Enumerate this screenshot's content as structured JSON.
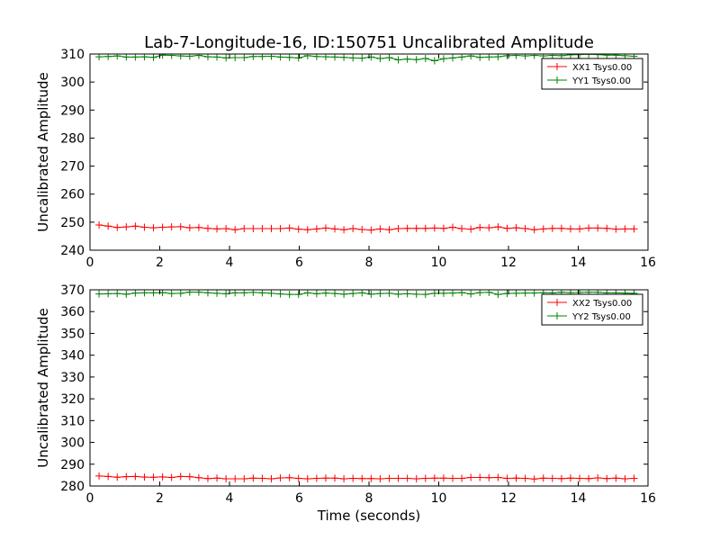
{
  "figure": {
    "title": "Lab-7-Longitude-16, ID:150751 Uncalibrated Amplitude",
    "xlabel": "Time (seconds)"
  },
  "chart_data": [
    {
      "type": "line",
      "title": "Lab-7-Longitude-16, ID:150751 Uncalibrated Amplitude",
      "ylabel": "Uncalibrated Amplitude",
      "xlabel": "",
      "xlim": [
        0,
        16
      ],
      "ylim": [
        240,
        310
      ],
      "xticks": [
        0,
        2,
        4,
        6,
        8,
        10,
        12,
        14,
        16
      ],
      "yticks": [
        240,
        250,
        260,
        270,
        280,
        290,
        300,
        310
      ],
      "grid": false,
      "legend_position": "top-right",
      "x": [
        0.26,
        0.52,
        0.78,
        1.04,
        1.3,
        1.56,
        1.82,
        2.08,
        2.34,
        2.6,
        2.86,
        3.12,
        3.38,
        3.64,
        3.9,
        4.16,
        4.42,
        4.68,
        4.94,
        5.2,
        5.46,
        5.72,
        5.98,
        6.24,
        6.5,
        6.76,
        7.02,
        7.28,
        7.54,
        7.8,
        8.06,
        8.32,
        8.58,
        8.84,
        9.1,
        9.36,
        9.62,
        9.88,
        10.14,
        10.4,
        10.66,
        10.92,
        11.18,
        11.44,
        11.7,
        11.96,
        12.22,
        12.48,
        12.74,
        13.0,
        13.26,
        13.52,
        13.78,
        14.04,
        14.3,
        14.56,
        14.82,
        15.08,
        15.34,
        15.6
      ],
      "series": [
        {
          "name": "XX1 Tsys0.00",
          "color": "#ff0000",
          "values": [
            249.0,
            248.6,
            248.1,
            248.3,
            248.6,
            248.2,
            248.0,
            248.2,
            248.3,
            248.4,
            248.0,
            248.1,
            247.8,
            247.6,
            247.7,
            247.3,
            247.7,
            247.7,
            247.7,
            247.7,
            247.7,
            247.9,
            247.5,
            247.3,
            247.6,
            247.9,
            247.6,
            247.3,
            247.7,
            247.4,
            247.2,
            247.6,
            247.3,
            247.7,
            247.8,
            247.8,
            247.8,
            247.9,
            247.8,
            248.2,
            247.7,
            247.5,
            248.1,
            248.0,
            248.3,
            247.8,
            248.0,
            247.7,
            247.3,
            247.6,
            247.8,
            247.8,
            247.6,
            247.6,
            247.9,
            247.9,
            247.8,
            247.5,
            247.6,
            247.6
          ]
        },
        {
          "name": "YY1 Tsys0.00",
          "color": "#008000",
          "values": [
            309.0,
            309.1,
            309.3,
            308.9,
            308.9,
            309.0,
            308.8,
            309.6,
            309.5,
            309.3,
            309.2,
            309.5,
            309.0,
            308.9,
            308.6,
            308.7,
            308.7,
            309.1,
            309.1,
            309.2,
            308.9,
            308.8,
            308.6,
            309.4,
            309.1,
            309.0,
            308.9,
            308.8,
            308.6,
            308.5,
            308.9,
            308.4,
            308.7,
            307.9,
            308.2,
            308.0,
            308.4,
            307.6,
            308.3,
            308.6,
            308.9,
            309.3,
            308.8,
            308.9,
            309.0,
            309.4,
            309.5,
            309.3,
            309.5,
            309.3,
            309.5,
            309.4,
            309.7,
            309.8,
            309.9,
            309.8,
            309.6,
            309.6,
            309.4,
            309.2
          ]
        }
      ]
    },
    {
      "type": "line",
      "title": "",
      "ylabel": "Uncalibrated Amplitude",
      "xlabel": "Time (seconds)",
      "xlim": [
        0,
        16
      ],
      "ylim": [
        280,
        370
      ],
      "xticks": [
        0,
        2,
        4,
        6,
        8,
        10,
        12,
        14,
        16
      ],
      "yticks": [
        280,
        290,
        300,
        310,
        320,
        330,
        340,
        350,
        360,
        370
      ],
      "grid": false,
      "legend_position": "top-right",
      "x": [
        0.26,
        0.52,
        0.78,
        1.04,
        1.3,
        1.56,
        1.82,
        2.08,
        2.34,
        2.6,
        2.86,
        3.12,
        3.38,
        3.64,
        3.9,
        4.16,
        4.42,
        4.68,
        4.94,
        5.2,
        5.46,
        5.72,
        5.98,
        6.24,
        6.5,
        6.76,
        7.02,
        7.28,
        7.54,
        7.8,
        8.06,
        8.32,
        8.58,
        8.84,
        9.1,
        9.36,
        9.62,
        9.88,
        10.14,
        10.4,
        10.66,
        10.92,
        11.18,
        11.44,
        11.7,
        11.96,
        12.22,
        12.48,
        12.74,
        13.0,
        13.26,
        13.52,
        13.78,
        14.04,
        14.3,
        14.56,
        14.82,
        15.08,
        15.34,
        15.6
      ],
      "series": [
        {
          "name": "XX2 Tsys0.00",
          "color": "#ff0000",
          "values": [
            284.6,
            284.4,
            284.0,
            284.3,
            284.4,
            284.1,
            284.0,
            284.2,
            283.9,
            284.4,
            284.3,
            283.8,
            283.4,
            283.6,
            283.3,
            283.3,
            283.3,
            283.6,
            283.5,
            283.3,
            283.7,
            283.8,
            283.5,
            283.3,
            283.5,
            283.6,
            283.6,
            283.3,
            283.5,
            283.4,
            283.4,
            283.3,
            283.5,
            283.5,
            283.5,
            283.3,
            283.5,
            283.6,
            283.6,
            283.5,
            283.5,
            283.9,
            283.9,
            283.8,
            283.9,
            283.5,
            283.6,
            283.5,
            283.2,
            283.6,
            283.5,
            283.4,
            283.6,
            283.5,
            283.4,
            283.7,
            283.4,
            283.6,
            283.3,
            283.5
          ]
        },
        {
          "name": "YY2 Tsys0.00",
          "color": "#008000",
          "values": [
            368.1,
            368.2,
            368.3,
            368.0,
            368.5,
            368.6,
            368.6,
            368.7,
            368.3,
            368.4,
            368.9,
            368.9,
            368.6,
            368.4,
            368.2,
            368.6,
            368.6,
            368.8,
            368.6,
            368.4,
            368.1,
            367.9,
            367.9,
            368.6,
            368.2,
            368.5,
            368.3,
            368.0,
            368.3,
            368.6,
            368.0,
            368.3,
            368.4,
            368.0,
            368.2,
            368.0,
            367.9,
            368.4,
            368.4,
            368.5,
            368.7,
            368.1,
            368.7,
            368.8,
            367.9,
            368.3,
            368.4,
            368.5,
            368.5,
            368.7,
            368.6,
            368.9,
            368.7,
            368.8,
            368.9,
            368.9,
            368.6,
            368.6,
            368.5,
            368.4
          ]
        }
      ]
    }
  ]
}
